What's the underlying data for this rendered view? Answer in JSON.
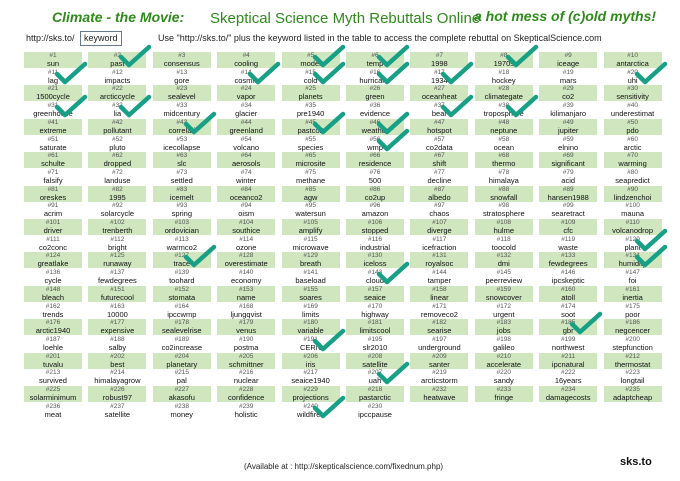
{
  "header": {
    "left": "Climate - the Movie:",
    "center": "Skeptical Science Myth Rebuttals Online",
    "right": "a hot mess of (c)old myths!"
  },
  "url": {
    "prefix": "http://sks.to/",
    "keyword": "keyword",
    "note": "Use \"http://sks.to/\" plus the keyword listed in the table to access the complete rebuttal on SkepticalScience.com"
  },
  "footer": {
    "available": "(Available at : http://skepticalscience.com/fixednum.php)",
    "logo": "sks.to"
  },
  "colors": {
    "green_cell": "#cfe6bf",
    "check": "#17a085",
    "title": "#2e8b1a"
  },
  "cells": [
    {
      "n": "#1",
      "k": "sun",
      "g": true,
      "c": false
    },
    {
      "n": "#2",
      "k": "past",
      "g": true,
      "c": true
    },
    {
      "n": "#3",
      "k": "consensus",
      "g": true,
      "c": false
    },
    {
      "n": "#4",
      "k": "cooling",
      "g": true,
      "c": false
    },
    {
      "n": "#5",
      "k": "model",
      "g": true,
      "c": true
    },
    {
      "n": "#6",
      "k": "temp",
      "g": true,
      "c": true
    },
    {
      "n": "#7",
      "k": "1998",
      "g": true,
      "c": false
    },
    {
      "n": "#8",
      "k": "1970s",
      "g": true,
      "c": true
    },
    {
      "n": "#9",
      "k": "iceage",
      "g": true,
      "c": false
    },
    {
      "n": "#10",
      "k": "antarctica",
      "g": true,
      "c": false
    },
    {
      "n": "#11",
      "k": "lag",
      "g": false,
      "c": true
    },
    {
      "n": "#12",
      "k": "impacts",
      "g": false,
      "c": false
    },
    {
      "n": "#13",
      "k": "gore",
      "g": false,
      "c": false
    },
    {
      "n": "#14",
      "k": "cosmic",
      "g": false,
      "c": true
    },
    {
      "n": "#15",
      "k": "cold",
      "g": false,
      "c": true
    },
    {
      "n": "#16",
      "k": "hurricane",
      "g": false,
      "c": true
    },
    {
      "n": "#17",
      "k": "1934",
      "g": false,
      "c": true
    },
    {
      "n": "#18",
      "k": "hockey",
      "g": false,
      "c": false
    },
    {
      "n": "#19",
      "k": "mars",
      "g": false,
      "c": false
    },
    {
      "n": "#20",
      "k": "uhi",
      "g": false,
      "c": true
    },
    {
      "n": "#21",
      "k": "1500cycle",
      "g": true,
      "c": false
    },
    {
      "n": "#22",
      "k": "arcticcycle",
      "g": true,
      "c": false
    },
    {
      "n": "#23",
      "k": "sealevel",
      "g": true,
      "c": false
    },
    {
      "n": "#24",
      "k": "vapor",
      "g": true,
      "c": false
    },
    {
      "n": "#25",
      "k": "planets",
      "g": true,
      "c": false
    },
    {
      "n": "#26",
      "k": "green",
      "g": true,
      "c": false
    },
    {
      "n": "#27",
      "k": "oceanheat",
      "g": true,
      "c": false
    },
    {
      "n": "#28",
      "k": "climategate",
      "g": true,
      "c": false
    },
    {
      "n": "#29",
      "k": "co2",
      "g": true,
      "c": false
    },
    {
      "n": "#30",
      "k": "sensitivity",
      "g": true,
      "c": false
    },
    {
      "n": "#31",
      "k": "greenhouse",
      "g": false,
      "c": true
    },
    {
      "n": "#32",
      "k": "lia",
      "g": false,
      "c": true
    },
    {
      "n": "#33",
      "k": "midcentury",
      "g": false,
      "c": false
    },
    {
      "n": "#34",
      "k": "glacier",
      "g": false,
      "c": false
    },
    {
      "n": "#35",
      "k": "pre1940",
      "g": false,
      "c": false
    },
    {
      "n": "#36",
      "k": "evidence",
      "g": false,
      "c": false
    },
    {
      "n": "#37",
      "k": "bear",
      "g": false,
      "c": true
    },
    {
      "n": "#38",
      "k": "troposphere",
      "g": false,
      "c": true
    },
    {
      "n": "#39",
      "k": "kilimanjaro",
      "g": false,
      "c": false
    },
    {
      "n": "#40",
      "k": "underestimat",
      "g": false,
      "c": false
    },
    {
      "n": "#41",
      "k": "extreme",
      "g": true,
      "c": false
    },
    {
      "n": "#42",
      "k": "pollutant",
      "g": true,
      "c": false
    },
    {
      "n": "#43",
      "k": "correlati",
      "g": true,
      "c": true
    },
    {
      "n": "#44",
      "k": "greenland",
      "g": true,
      "c": false
    },
    {
      "n": "#45",
      "k": "pastco2",
      "g": true,
      "c": true
    },
    {
      "n": "#46",
      "k": "weather",
      "g": true,
      "c": true
    },
    {
      "n": "#47",
      "k": "hotspot",
      "g": true,
      "c": false
    },
    {
      "n": "#48",
      "k": "neptune",
      "g": true,
      "c": false
    },
    {
      "n": "#49",
      "k": "jupiter",
      "g": true,
      "c": false
    },
    {
      "n": "#50",
      "k": "pdo",
      "g": true,
      "c": false
    },
    {
      "n": "#51",
      "k": "saturate",
      "g": false,
      "c": false
    },
    {
      "n": "#52",
      "k": "pluto",
      "g": false,
      "c": false
    },
    {
      "n": "#53",
      "k": "icecollapse",
      "g": false,
      "c": false
    },
    {
      "n": "#54",
      "k": "volcano",
      "g": false,
      "c": false
    },
    {
      "n": "#55",
      "k": "species",
      "g": false,
      "c": false
    },
    {
      "n": "#56",
      "k": "wmp",
      "g": false,
      "c": true
    },
    {
      "n": "#57",
      "k": "co2data",
      "g": false,
      "c": false
    },
    {
      "n": "#58",
      "k": "ocean",
      "g": false,
      "c": false
    },
    {
      "n": "#59",
      "k": "elnino",
      "g": false,
      "c": false
    },
    {
      "n": "#60",
      "k": "arctic",
      "g": false,
      "c": false
    },
    {
      "n": "#61",
      "k": "schulte",
      "g": true,
      "c": false
    },
    {
      "n": "#62",
      "k": "dropped",
      "g": true,
      "c": false
    },
    {
      "n": "#63",
      "k": "slc",
      "g": true,
      "c": false
    },
    {
      "n": "#64",
      "k": "aerosols",
      "g": true,
      "c": false
    },
    {
      "n": "#65",
      "k": "microsite",
      "g": true,
      "c": false
    },
    {
      "n": "#66",
      "k": "residence",
      "g": true,
      "c": false
    },
    {
      "n": "#67",
      "k": "shift",
      "g": true,
      "c": false
    },
    {
      "n": "#68",
      "k": "thermo",
      "g": true,
      "c": false
    },
    {
      "n": "#69",
      "k": "significant",
      "g": true,
      "c": false
    },
    {
      "n": "#70",
      "k": "warming",
      "g": true,
      "c": false
    },
    {
      "n": "#71",
      "k": "falsify",
      "g": false,
      "c": false
    },
    {
      "n": "#72",
      "k": "landuse",
      "g": false,
      "c": false
    },
    {
      "n": "#73",
      "k": "settled",
      "g": false,
      "c": false
    },
    {
      "n": "#74",
      "k": "winter",
      "g": false,
      "c": false
    },
    {
      "n": "#75",
      "k": "methane",
      "g": false,
      "c": false
    },
    {
      "n": "#76",
      "k": "500",
      "g": false,
      "c": false
    },
    {
      "n": "#77",
      "k": "decline",
      "g": false,
      "c": false
    },
    {
      "n": "#78",
      "k": "himalaya",
      "g": false,
      "c": false
    },
    {
      "n": "#79",
      "k": "acid",
      "g": false,
      "c": false
    },
    {
      "n": "#80",
      "k": "seapredict",
      "g": false,
      "c": false
    },
    {
      "n": "#81",
      "k": "oreskes",
      "g": true,
      "c": false
    },
    {
      "n": "#82",
      "k": "1995",
      "g": true,
      "c": false
    },
    {
      "n": "#83",
      "k": "icemelt",
      "g": true,
      "c": false
    },
    {
      "n": "#84",
      "k": "oceanco2",
      "g": true,
      "c": false
    },
    {
      "n": "#85",
      "k": "agw",
      "g": true,
      "c": false
    },
    {
      "n": "#86",
      "k": "co2up",
      "g": true,
      "c": false
    },
    {
      "n": "#87",
      "k": "albedo",
      "g": true,
      "c": false
    },
    {
      "n": "#88",
      "k": "snowfall",
      "g": true,
      "c": false
    },
    {
      "n": "#89",
      "k": "hansen1988",
      "g": true,
      "c": false
    },
    {
      "n": "#90",
      "k": "lindzenchoi",
      "g": true,
      "c": false
    },
    {
      "n": "#91",
      "k": "acrim",
      "g": false,
      "c": false
    },
    {
      "n": "#92",
      "k": "solarcycle",
      "g": false,
      "c": false
    },
    {
      "n": "#93",
      "k": "spring",
      "g": false,
      "c": false
    },
    {
      "n": "#94",
      "k": "oism",
      "g": false,
      "c": false
    },
    {
      "n": "#95",
      "k": "watersun",
      "g": false,
      "c": false
    },
    {
      "n": "#96",
      "k": "amazon",
      "g": false,
      "c": false
    },
    {
      "n": "#97",
      "k": "chaos",
      "g": false,
      "c": false
    },
    {
      "n": "#98",
      "k": "stratosphere",
      "g": false,
      "c": false
    },
    {
      "n": "#99",
      "k": "searetract",
      "g": false,
      "c": false
    },
    {
      "n": "#100",
      "k": "mauna",
      "g": false,
      "c": false
    },
    {
      "n": "#101",
      "k": "driver",
      "g": true,
      "c": false
    },
    {
      "n": "#102",
      "k": "trenberth",
      "g": true,
      "c": false
    },
    {
      "n": "#103",
      "k": "ordovician",
      "g": true,
      "c": false
    },
    {
      "n": "#104",
      "k": "southice",
      "g": true,
      "c": false
    },
    {
      "n": "#105",
      "k": "amplify",
      "g": true,
      "c": false
    },
    {
      "n": "#106",
      "k": "stopped",
      "g": true,
      "c": false
    },
    {
      "n": "#107",
      "k": "diverge",
      "g": true,
      "c": false
    },
    {
      "n": "#108",
      "k": "hulme",
      "g": true,
      "c": false
    },
    {
      "n": "#109",
      "k": "cfc",
      "g": true,
      "c": false
    },
    {
      "n": "#110",
      "k": "volcanodrop",
      "g": true,
      "c": false
    },
    {
      "n": "#111",
      "k": "co2conc",
      "g": false,
      "c": false
    },
    {
      "n": "#112",
      "k": "bright",
      "g": false,
      "c": false
    },
    {
      "n": "#113",
      "k": "warmco2",
      "g": false,
      "c": false
    },
    {
      "n": "#114",
      "k": "ozone",
      "g": false,
      "c": false
    },
    {
      "n": "#115",
      "k": "microwave",
      "g": false,
      "c": false
    },
    {
      "n": "#116",
      "k": "industrial",
      "g": false,
      "c": false
    },
    {
      "n": "#117",
      "k": "icefraction",
      "g": false,
      "c": false
    },
    {
      "n": "#118",
      "k": "toocold",
      "g": false,
      "c": false
    },
    {
      "n": "#119",
      "k": "waste",
      "g": false,
      "c": false
    },
    {
      "n": "#120",
      "k": "plant",
      "g": false,
      "c": true
    },
    {
      "n": "#124",
      "k": "greatlake",
      "g": true,
      "c": false
    },
    {
      "n": "#125",
      "k": "runaway",
      "g": true,
      "c": false
    },
    {
      "n": "#127",
      "k": "trace",
      "g": true,
      "c": true
    },
    {
      "n": "#128",
      "k": "overestimate",
      "g": true,
      "c": false
    },
    {
      "n": "#129",
      "k": "breath",
      "g": true,
      "c": false
    },
    {
      "n": "#130",
      "k": "iceloss",
      "g": true,
      "c": false
    },
    {
      "n": "#131",
      "k": "royalsoc",
      "g": true,
      "c": false
    },
    {
      "n": "#132",
      "k": "dmi",
      "g": true,
      "c": false
    },
    {
      "n": "#133",
      "k": "fewdegrees",
      "g": true,
      "c": false
    },
    {
      "n": "#134",
      "k": "humidity",
      "g": true,
      "c": true
    },
    {
      "n": "#136",
      "k": "cycle",
      "g": false,
      "c": false
    },
    {
      "n": "#137",
      "k": "fewdegrees",
      "g": false,
      "c": false
    },
    {
      "n": "#139",
      "k": "toohard",
      "g": false,
      "c": false
    },
    {
      "n": "#140",
      "k": "economy",
      "g": false,
      "c": false
    },
    {
      "n": "#141",
      "k": "baseload",
      "g": false,
      "c": false
    },
    {
      "n": "#143",
      "k": "cloud",
      "g": false,
      "c": true
    },
    {
      "n": "#144",
      "k": "tamper",
      "g": false,
      "c": false
    },
    {
      "n": "#145",
      "k": "peerreview",
      "g": false,
      "c": false
    },
    {
      "n": "#146",
      "k": "ipcskeptic",
      "g": false,
      "c": false
    },
    {
      "n": "#147",
      "k": "foi",
      "g": false,
      "c": false
    },
    {
      "n": "#148",
      "k": "bleach",
      "g": true,
      "c": false
    },
    {
      "n": "#151",
      "k": "futurecool",
      "g": true,
      "c": false
    },
    {
      "n": "#152",
      "k": "stomata",
      "g": true,
      "c": false
    },
    {
      "n": "#153",
      "k": "name",
      "g": true,
      "c": false
    },
    {
      "n": "#155",
      "k": "soares",
      "g": true,
      "c": false
    },
    {
      "n": "#157",
      "k": "seaice",
      "g": true,
      "c": false
    },
    {
      "n": "#158",
      "k": "linear",
      "g": true,
      "c": false
    },
    {
      "n": "#159",
      "k": "snowcover",
      "g": true,
      "c": false
    },
    {
      "n": "#160",
      "k": "atoll",
      "g": true,
      "c": false
    },
    {
      "n": "#161",
      "k": "inertia",
      "g": true,
      "c": false
    },
    {
      "n": "#162",
      "k": "trends",
      "g": false,
      "c": false
    },
    {
      "n": "#163",
      "k": "10000",
      "g": false,
      "c": false
    },
    {
      "n": "#164",
      "k": "ipccwmp",
      "g": false,
      "c": false
    },
    {
      "n": "#168",
      "k": "ljungqvist",
      "g": false,
      "c": false
    },
    {
      "n": "#169",
      "k": "limits",
      "g": false,
      "c": false
    },
    {
      "n": "#170",
      "k": "highway",
      "g": false,
      "c": false
    },
    {
      "n": "#171",
      "k": "removeco2",
      "g": false,
      "c": false
    },
    {
      "n": "#172",
      "k": "urgent",
      "g": false,
      "c": false
    },
    {
      "n": "#174",
      "k": "soot",
      "g": false,
      "c": false
    },
    {
      "n": "#175",
      "k": "poor",
      "g": false,
      "c": false
    },
    {
      "n": "#176",
      "k": "arctic1940",
      "g": true,
      "c": false
    },
    {
      "n": "#177",
      "k": "expensive",
      "g": true,
      "c": false
    },
    {
      "n": "#178",
      "k": "sealevelrise",
      "g": true,
      "c": false
    },
    {
      "n": "#179",
      "k": "venus",
      "g": true,
      "c": false
    },
    {
      "n": "#180",
      "k": "variable",
      "g": true,
      "c": false
    },
    {
      "n": "#181",
      "k": "limitscool",
      "g": true,
      "c": false
    },
    {
      "n": "#182",
      "k": "searise",
      "g": true,
      "c": false
    },
    {
      "n": "#183",
      "k": "jobs",
      "g": true,
      "c": false
    },
    {
      "n": "#185",
      "k": "gbr",
      "g": true,
      "c": true
    },
    {
      "n": "#186",
      "k": "negcencer",
      "g": true,
      "c": false
    },
    {
      "n": "#187",
      "k": "loehle",
      "g": false,
      "c": false
    },
    {
      "n": "#188",
      "k": "salby",
      "g": false,
      "c": false
    },
    {
      "n": "#189",
      "k": "co2increase",
      "g": false,
      "c": false
    },
    {
      "n": "#190",
      "k": "postma",
      "g": false,
      "c": false
    },
    {
      "n": "#191",
      "k": "CERN",
      "g": false,
      "c": true
    },
    {
      "n": "#195",
      "k": "slr2010",
      "g": false,
      "c": false
    },
    {
      "n": "#197",
      "k": "underground",
      "g": false,
      "c": false
    },
    {
      "n": "#198",
      "k": "galileo",
      "g": false,
      "c": false
    },
    {
      "n": "#199",
      "k": "northwest",
      "g": false,
      "c": false
    },
    {
      "n": "#200",
      "k": "stepfunction",
      "g": false,
      "c": false
    },
    {
      "n": "#201",
      "k": "tuvalu",
      "g": true,
      "c": false
    },
    {
      "n": "#202",
      "k": "best",
      "g": true,
      "c": false
    },
    {
      "n": "#204",
      "k": "planetary",
      "g": true,
      "c": false
    },
    {
      "n": "#205",
      "k": "schmittner",
      "g": true,
      "c": false
    },
    {
      "n": "#206",
      "k": "iris",
      "g": true,
      "c": false
    },
    {
      "n": "#208",
      "k": "satellite",
      "g": true,
      "c": false
    },
    {
      "n": "#209",
      "k": "santer",
      "g": true,
      "c": false
    },
    {
      "n": "#210",
      "k": "accelerate",
      "g": true,
      "c": false
    },
    {
      "n": "#211",
      "k": "ipcnatural",
      "g": true,
      "c": false
    },
    {
      "n": "#212",
      "k": "thermostat",
      "g": true,
      "c": false
    },
    {
      "n": "#213",
      "k": "survived",
      "g": false,
      "c": false
    },
    {
      "n": "#214",
      "k": "himalayagrow",
      "g": false,
      "c": false
    },
    {
      "n": "#215",
      "k": "pal",
      "g": false,
      "c": false
    },
    {
      "n": "#216",
      "k": "nuclear",
      "g": false,
      "c": false
    },
    {
      "n": "#217",
      "k": "seaice1940",
      "g": false,
      "c": false
    },
    {
      "n": "#207",
      "k": "uah",
      "g": false,
      "c": true
    },
    {
      "n": "#219",
      "k": "arcticstorm",
      "g": false,
      "c": false
    },
    {
      "n": "#220",
      "k": "sandy",
      "g": false,
      "c": false
    },
    {
      "n": "#222",
      "k": "16years",
      "g": false,
      "c": false
    },
    {
      "n": "#223",
      "k": "longtail",
      "g": false,
      "c": false
    },
    {
      "n": "#225",
      "k": "solarminimum",
      "g": true,
      "c": false
    },
    {
      "n": "#226",
      "k": "robust97",
      "g": true,
      "c": false
    },
    {
      "n": "#227",
      "k": "akasofu",
      "g": true,
      "c": false
    },
    {
      "n": "#228",
      "k": "confidence",
      "g": true,
      "c": false
    },
    {
      "n": "#229",
      "k": "projections",
      "g": true,
      "c": false
    },
    {
      "n": "#218",
      "k": "pastarctic",
      "g": true,
      "c": false
    },
    {
      "n": "#232",
      "k": "heatwave",
      "g": true,
      "c": false
    },
    {
      "n": "#233",
      "k": "fringe",
      "g": true,
      "c": false
    },
    {
      "n": "#234",
      "k": "damagecosts",
      "g": true,
      "c": false
    },
    {
      "n": "#235",
      "k": "adaptcheap",
      "g": true,
      "c": false
    },
    {
      "n": "#236",
      "k": "meat",
      "g": false,
      "c": false
    },
    {
      "n": "#237",
      "k": "satellite",
      "g": false,
      "c": false
    },
    {
      "n": "#238",
      "k": "money",
      "g": false,
      "c": false
    },
    {
      "n": "#239",
      "k": "holistic",
      "g": false,
      "c": false
    },
    {
      "n": "#240",
      "k": "wildfires",
      "g": false,
      "c": true
    },
    {
      "n": "#230",
      "k": "ipccpause",
      "g": false,
      "c": false
    },
    {
      "n": "",
      "k": "",
      "g": false,
      "c": false
    },
    {
      "n": "",
      "k": "",
      "g": false,
      "c": false
    },
    {
      "n": "",
      "k": "",
      "g": false,
      "c": false
    },
    {
      "n": "",
      "k": "",
      "g": false,
      "c": false
    }
  ]
}
